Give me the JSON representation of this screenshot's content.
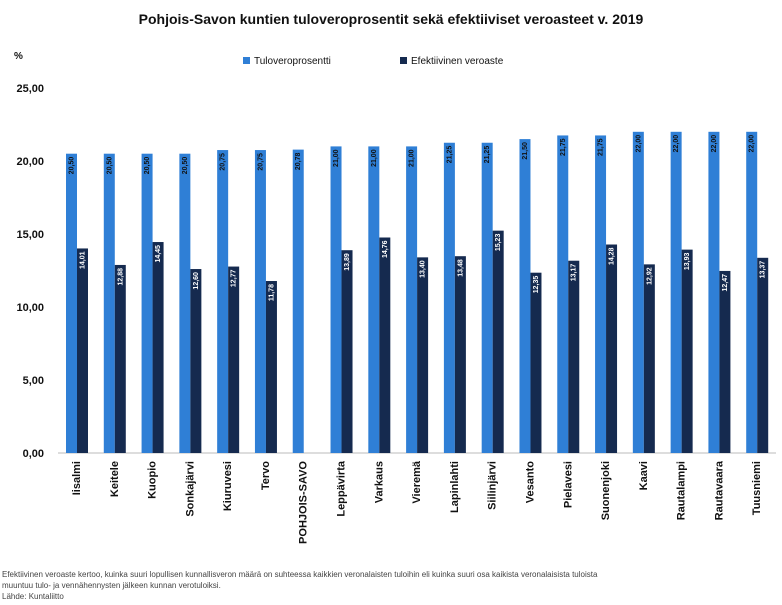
{
  "chart_data": {
    "type": "bar",
    "title": "Pohjois-Savon kuntien tuloveroprosentit sekä efektiiviset veroasteet v. 2019",
    "ylabel": "%",
    "ylim": [
      0,
      25
    ],
    "yticks": [
      "0,00",
      "5,00",
      "10,00",
      "15,00",
      "20,00",
      "25,00"
    ],
    "grid": false,
    "legend_position": "top-center",
    "categories": [
      "Iisalmi",
      "Keitele",
      "Kuopio",
      "Sonkajärvi",
      "Kiuruvesi",
      "Tervo",
      "POHJOIS-SAVO",
      "Leppävirta",
      "Varkaus",
      "Vieremä",
      "Lapinlahti",
      "Siilinjärvi",
      "Vesanto",
      "Pielavesi",
      "Suonenjoki",
      "Kaavi",
      "Rautalampi",
      "Rautavaara",
      "Tuusniemi"
    ],
    "series": [
      {
        "name": "Tuloveroprosentti",
        "color": "#2f7fd6",
        "values": [
          20.5,
          20.5,
          20.5,
          20.5,
          20.75,
          20.75,
          20.78,
          21.0,
          21.0,
          21.0,
          21.25,
          21.25,
          21.5,
          21.75,
          21.75,
          22.0,
          22.0,
          22.0,
          22.0
        ],
        "labels": [
          "20,50",
          "20,50",
          "20,50",
          "20,50",
          "20,75",
          "20,75",
          "20,78",
          "21,00",
          "21,00",
          "21,00",
          "21,25",
          "21,25",
          "21,50",
          "21,75",
          "21,75",
          "22,00",
          "22,00",
          "22,00",
          "22,00"
        ]
      },
      {
        "name": "Efektiivinen veroaste",
        "color": "#152a4f",
        "values": [
          14.01,
          12.88,
          14.45,
          12.6,
          12.77,
          11.78,
          null,
          13.89,
          14.76,
          13.4,
          13.48,
          15.23,
          12.35,
          13.17,
          14.28,
          12.92,
          13.93,
          12.47,
          13.37
        ],
        "labels": [
          "14,01",
          "12,88",
          "14,45",
          "12,60",
          "12,77",
          "11,78",
          "",
          "13,89",
          "14,76",
          "13,40",
          "13,48",
          "15,23",
          "12,35",
          "13,17",
          "14,28",
          "12,92",
          "13,93",
          "12,47",
          "13,37"
        ]
      }
    ]
  },
  "footnotes": {
    "line1": "Efektiivinen veroaste kertoo, kuinka suuri lopullisen kunnallisveron määrä on suhteessa kaikkien veronalaisten tuloihin eli kuinka suuri osa kaikista veronalaisista tuloista",
    "line2": "muuntuu tulo- ja vennähennysten jälkeen kunnan verotuloiksi.",
    "line3": "Lähde: Kuntaliitto"
  }
}
